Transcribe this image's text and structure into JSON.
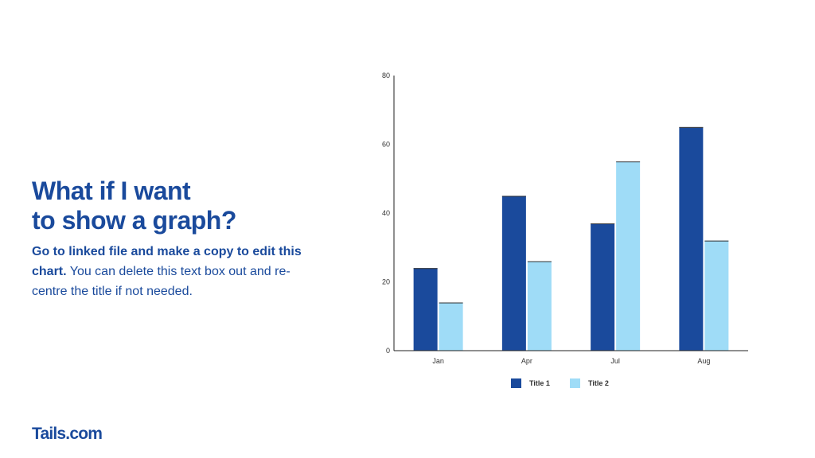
{
  "slide": {
    "title_line1": "What if I want",
    "title_line2": "to show a graph?",
    "body_bold": "Go to linked file and make a copy to edit this chart.",
    "body_regular": "You can delete this text box out and re-centre the title if not needed.",
    "logo": "Tails.com"
  },
  "colors": {
    "text": "#1a4a9c",
    "series1": "#1a4a9c",
    "series2": "#9fdcf7",
    "axis": "#222222"
  },
  "chart_data": {
    "type": "bar",
    "categories": [
      "Jan",
      "Apr",
      "Jul",
      "Aug"
    ],
    "series": [
      {
        "name": "Title 1",
        "values": [
          24,
          45,
          37,
          65
        ]
      },
      {
        "name": "Title 2",
        "values": [
          14,
          26,
          55,
          32
        ]
      }
    ],
    "y_ticks": [
      "0",
      "20",
      "40",
      "60",
      "80"
    ],
    "ylim": [
      0,
      80
    ],
    "grid": false,
    "legend_position": "bottom"
  }
}
